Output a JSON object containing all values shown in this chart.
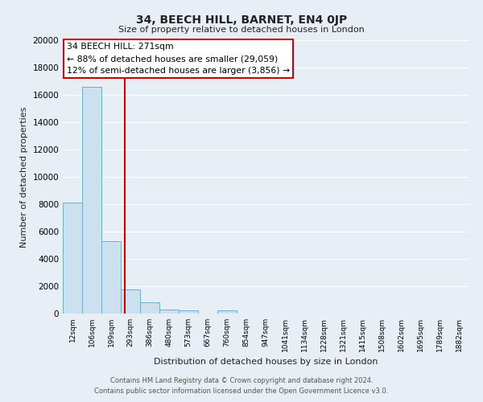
{
  "title": "34, BEECH HILL, BARNET, EN4 0JP",
  "subtitle": "Size of property relative to detached houses in London",
  "xlabel": "Distribution of detached houses by size in London",
  "ylabel": "Number of detached properties",
  "bar_labels": [
    "12sqm",
    "106sqm",
    "199sqm",
    "293sqm",
    "386sqm",
    "480sqm",
    "573sqm",
    "667sqm",
    "760sqm",
    "854sqm",
    "947sqm",
    "1041sqm",
    "1134sqm",
    "1228sqm",
    "1321sqm",
    "1415sqm",
    "1508sqm",
    "1602sqm",
    "1695sqm",
    "1789sqm",
    "1882sqm"
  ],
  "bar_values": [
    8100,
    16600,
    5300,
    1750,
    800,
    300,
    250,
    0,
    250,
    0,
    0,
    0,
    0,
    0,
    0,
    0,
    0,
    0,
    0,
    0,
    0
  ],
  "bar_color": "#cce0f0",
  "bar_edgecolor": "#6baed6",
  "property_line_x": 2.72,
  "property_line_color": "#cc0000",
  "annotation_title": "34 BEECH HILL: 271sqm",
  "annotation_line1": "← 88% of detached houses are smaller (29,059)",
  "annotation_line2": "12% of semi-detached houses are larger (3,856) →",
  "annotation_box_color": "#ffffff",
  "annotation_box_edgecolor": "#cc0000",
  "ylim": [
    0,
    20000
  ],
  "yticks": [
    0,
    2000,
    4000,
    6000,
    8000,
    10000,
    12000,
    14000,
    16000,
    18000,
    20000
  ],
  "background_color": "#e8eef5",
  "grid_color": "#ffffff",
  "footer_line1": "Contains HM Land Registry data © Crown copyright and database right 2024.",
  "footer_line2": "Contains public sector information licensed under the Open Government Licence v3.0."
}
